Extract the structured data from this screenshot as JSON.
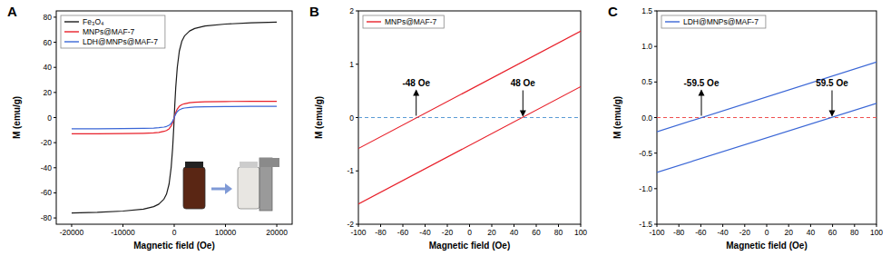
{
  "chart_data": [
    {
      "type": "line",
      "title": "A",
      "x_label": "Magnetic field (Oe)",
      "y_label": "M (emu/g)",
      "x": [
        -20000,
        -15000,
        -10000,
        -6000,
        -4000,
        -3000,
        -2000,
        -1500,
        -1000,
        -600,
        -300,
        -100,
        0,
        100,
        300,
        600,
        1000,
        1500,
        2000,
        3000,
        4000,
        6000,
        10000,
        15000,
        20000
      ],
      "xlim": [
        -23000,
        23000
      ],
      "xticks": [
        -20000,
        -10000,
        0,
        10000,
        20000
      ],
      "ylim": [
        -85,
        85
      ],
      "yticks": [
        -80,
        -60,
        -40,
        -20,
        0,
        20,
        40,
        60,
        80
      ],
      "legend": "upper left",
      "series": [
        {
          "name": "Fe₃O₄",
          "color": "#1a1a1a",
          "values": [
            -76,
            -75.5,
            -74.5,
            -73,
            -71,
            -69,
            -65,
            -61,
            -53,
            -40,
            -24,
            -9,
            0,
            9,
            24,
            40,
            53,
            61,
            65,
            69,
            71,
            73,
            74.5,
            75.5,
            76
          ]
        },
        {
          "name": "MNPs@MAF-7",
          "color": "#e8202a",
          "values": [
            -13,
            -13,
            -12.8,
            -12.5,
            -12.2,
            -11.8,
            -11,
            -10.3,
            -9,
            -6.8,
            -4,
            -1.5,
            0,
            1.5,
            4,
            6.8,
            9,
            10.3,
            11,
            11.8,
            12.2,
            12.5,
            12.8,
            13,
            13
          ]
        },
        {
          "name": "LDH@MNPs@MAF-7",
          "color": "#3a66d6",
          "values": [
            -9,
            -8.9,
            -8.8,
            -8.6,
            -8.4,
            -8.1,
            -7.6,
            -7.1,
            -6.2,
            -4.7,
            -2.8,
            -1,
            0,
            1,
            2.8,
            4.7,
            6.2,
            7.1,
            7.6,
            8.1,
            8.4,
            8.6,
            8.8,
            8.9,
            9
          ]
        }
      ]
    },
    {
      "type": "line",
      "title": "B",
      "x_label": "Magnetic field (Oe)",
      "y_label": "M (emu/g)",
      "x": [
        -100,
        100,
        0,
        -100,
        100
      ],
      "xlim": [
        -100,
        100
      ],
      "xticks": [
        -100,
        -80,
        -60,
        -40,
        -20,
        0,
        20,
        40,
        60,
        80,
        100
      ],
      "ylim": [
        -2,
        2
      ],
      "yticks": [
        -2,
        -1,
        0,
        1,
        2
      ],
      "legend": "upper left",
      "series": [
        {
          "name": "MNPs@MAF-7",
          "color": "#e8202a",
          "values": [
            -1.62,
            0.58,
            null,
            -0.58,
            1.62
          ]
        }
      ],
      "hlines": [
        {
          "y": 0,
          "color": "#5b9bd5",
          "line_style": "dashed"
        }
      ],
      "annotations": [
        {
          "text": "-48 Oe",
          "x": -48,
          "y": 0
        },
        {
          "text": "48 Oe",
          "x": 48,
          "y": 0
        }
      ]
    },
    {
      "type": "line",
      "title": "C",
      "x_label": "Magnetic field (Oe)",
      "y_label": "M (emu/g)",
      "x": [
        -100,
        100,
        0,
        -100,
        100
      ],
      "xlim": [
        -100,
        100
      ],
      "xticks": [
        -100,
        -80,
        -60,
        -40,
        -20,
        0,
        20,
        40,
        60,
        80,
        100
      ],
      "ylim": [
        -1.5,
        1.5
      ],
      "yticks": [
        -1.5,
        {
          "value": -1,
          "label": "-1.0"
        },
        -0.5,
        {
          "value": 0,
          "label": "0.0"
        },
        0.5,
        {
          "value": 1,
          "label": "1.0"
        },
        1.5
      ],
      "legend": "upper left",
      "series": [
        {
          "name": "LDH@MNPs@MAF-7",
          "color": "#3a66d6",
          "values": [
            -0.77,
            0.2,
            null,
            -0.2,
            0.78
          ]
        }
      ],
      "hlines": [
        {
          "y": 0,
          "color": "#f05050",
          "line_style": "dashed"
        }
      ],
      "annotations": [
        {
          "text": "-59.5 Oe",
          "x": -59.5,
          "y": 0
        },
        {
          "text": "59.5 Oe",
          "x": 59.5,
          "y": 0
        }
      ]
    }
  ]
}
